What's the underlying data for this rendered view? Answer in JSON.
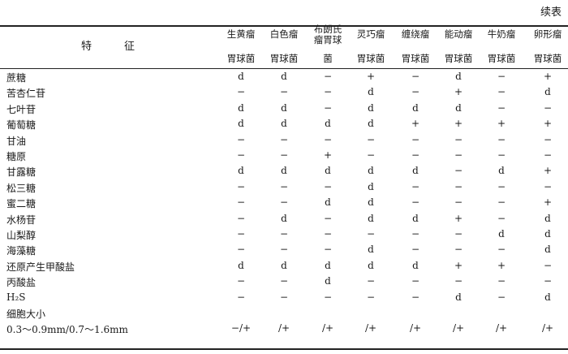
{
  "continued_label": "续表",
  "feature_header": "特征",
  "columns": [
    {
      "line1": "生黄瘤",
      "line2": "胃球菌"
    },
    {
      "line1": "白色瘤",
      "line2": "胃球菌"
    },
    {
      "line1": "布朗氏瘤胃球",
      "line2": "菌"
    },
    {
      "line1": "灵巧瘤",
      "line2": "胃球菌"
    },
    {
      "line1": "缠绕瘤",
      "line2": "胃球菌"
    },
    {
      "line1": "能动瘤",
      "line2": "胃球菌"
    },
    {
      "line1": "牛奶瘤",
      "line2": "胃球菌"
    },
    {
      "line1": "卵形瘤",
      "line2": "胃球菌"
    }
  ],
  "rows": [
    {
      "label": "蔗糖",
      "values": [
        "d",
        "d",
        "−",
        "+",
        "−",
        "d",
        "−",
        "+"
      ]
    },
    {
      "label": "苦杏仁苷",
      "values": [
        "−",
        "−",
        "−",
        "d",
        "−",
        "+",
        "−",
        "d"
      ]
    },
    {
      "label": "七叶苷",
      "values": [
        "d",
        "d",
        "−",
        "d",
        "d",
        "d",
        "−",
        "−"
      ]
    },
    {
      "label": "葡萄糖",
      "values": [
        "d",
        "d",
        "d",
        "d",
        "+",
        "+",
        "+",
        "+"
      ]
    },
    {
      "label": "甘油",
      "values": [
        "−",
        "−",
        "−",
        "−",
        "−",
        "−",
        "−",
        "−"
      ]
    },
    {
      "label": "糖原",
      "values": [
        "−",
        "−",
        "+",
        "−",
        "−",
        "−",
        "−",
        "−"
      ]
    },
    {
      "label": "甘露糖",
      "values": [
        "d",
        "d",
        "d",
        "d",
        "d",
        "−",
        "d",
        "+"
      ]
    },
    {
      "label": "松三糖",
      "values": [
        "−",
        "−",
        "−",
        "d",
        "−",
        "−",
        "−",
        "−"
      ]
    },
    {
      "label": "蜜二糖",
      "values": [
        "−",
        "−",
        "d",
        "d",
        "−",
        "−",
        "−",
        "+"
      ]
    },
    {
      "label": "水杨苷",
      "values": [
        "−",
        "d",
        "−",
        "d",
        "d",
        "+",
        "−",
        "d"
      ]
    },
    {
      "label": "山梨醇",
      "values": [
        "−",
        "−",
        "−",
        "−",
        "−",
        "−",
        "d",
        "d"
      ]
    },
    {
      "label": "海藻糖",
      "values": [
        "−",
        "−",
        "−",
        "d",
        "−",
        "−",
        "−",
        "d"
      ]
    },
    {
      "label": "还原产生甲酸盐",
      "values": [
        "d",
        "d",
        "d",
        "d",
        "d",
        "+",
        "+",
        "−"
      ]
    },
    {
      "label": "丙酸盐",
      "values": [
        "−",
        "−",
        "d",
        "−",
        "−",
        "−",
        "−",
        "−"
      ]
    },
    {
      "label": "H₂S",
      "values": [
        "−",
        "−",
        "−",
        "−",
        "−",
        "d",
        "−",
        "d"
      ]
    },
    {
      "label": "细胞大小",
      "values": [
        "",
        "",
        "",
        "",
        "",
        "",
        "",
        ""
      ]
    },
    {
      "label": "0.3～0.9mm/0.7～1.6mm",
      "values": [
        "−/+",
        "/+",
        "/+",
        "/+",
        "/+",
        "/+",
        "/+",
        "/+"
      ]
    }
  ]
}
